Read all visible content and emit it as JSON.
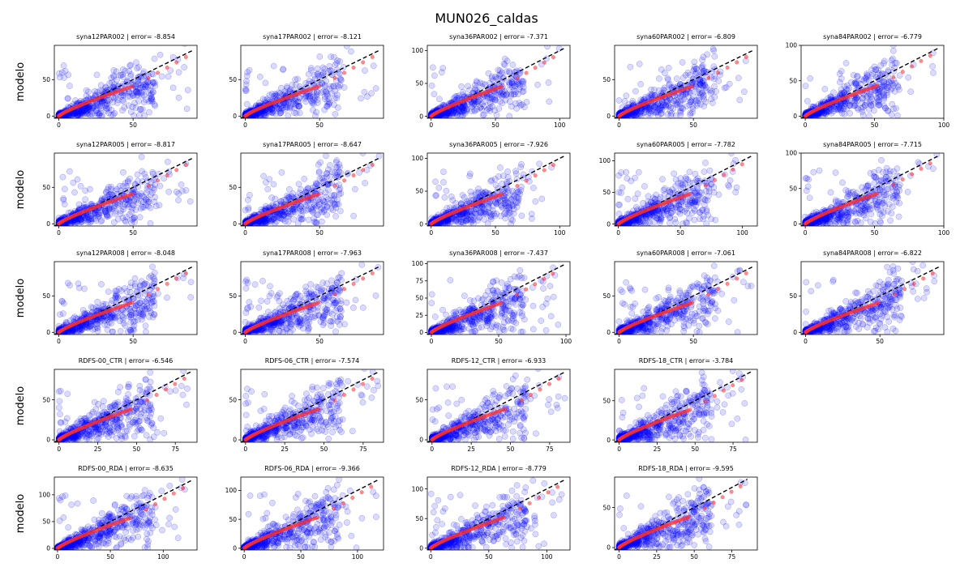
{
  "figure": {
    "title": "MUN026_caldas",
    "ylabel": "modelo"
  },
  "style": {
    "scatter_color": "#0000ff",
    "quantile_color": "#ff3030",
    "reference_line_color": "#000000"
  },
  "chart_data": [
    {
      "type": "scatter",
      "title": "syna12PAR002 | error= -8.854",
      "xlim": [
        -3,
        93
      ],
      "ylim": [
        -3,
        97
      ],
      "xticks": [
        0,
        50
      ],
      "yticks": [
        0,
        50
      ],
      "maxv": 90
    },
    {
      "type": "scatter",
      "title": "syna17PAR002 | error= -8.121",
      "xlim": [
        -3,
        93
      ],
      "ylim": [
        -3,
        97
      ],
      "xticks": [
        0,
        50
      ],
      "yticks": [
        0,
        50
      ],
      "maxv": 90
    },
    {
      "type": "scatter",
      "title": "syna36PAR002 | error= -7.371",
      "xlim": [
        -3,
        108
      ],
      "ylim": [
        -3,
        108
      ],
      "xticks": [
        0,
        50,
        100
      ],
      "yticks": [
        0,
        50,
        100
      ],
      "maxv": 100
    },
    {
      "type": "scatter",
      "title": "syna60PAR002 | error= -6.809",
      "xlim": [
        -3,
        93
      ],
      "ylim": [
        -3,
        97
      ],
      "xticks": [
        0,
        50
      ],
      "yticks": [
        0,
        50
      ],
      "maxv": 90
    },
    {
      "type": "scatter",
      "title": "syna84PAR002 | error= -6.779",
      "xlim": [
        -3,
        100
      ],
      "ylim": [
        -3,
        100
      ],
      "xticks": [
        0,
        50,
        100
      ],
      "yticks": [
        0,
        50,
        100
      ],
      "maxv": 95
    },
    {
      "type": "scatter",
      "title": "syna12PAR005 | error= -8.817",
      "xlim": [
        -3,
        93
      ],
      "ylim": [
        -3,
        97
      ],
      "xticks": [
        0,
        50
      ],
      "yticks": [
        0,
        50
      ],
      "maxv": 90
    },
    {
      "type": "scatter",
      "title": "syna17PAR005 | error= -8.647",
      "xlim": [
        -3,
        93
      ],
      "ylim": [
        -3,
        97
      ],
      "xticks": [
        0,
        50
      ],
      "yticks": [
        0,
        50
      ],
      "maxv": 90
    },
    {
      "type": "scatter",
      "title": "syna36PAR005 | error= -7.926",
      "xlim": [
        -3,
        108
      ],
      "ylim": [
        -3,
        108
      ],
      "xticks": [
        0,
        50,
        100
      ],
      "yticks": [
        0,
        50,
        100
      ],
      "maxv": 100
    },
    {
      "type": "scatter",
      "title": "syna60PAR005 | error= -7.782",
      "xlim": [
        -3,
        112
      ],
      "ylim": [
        -3,
        112
      ],
      "xticks": [
        0,
        50,
        100
      ],
      "yticks": [
        0,
        50,
        100
      ],
      "maxv": 105
    },
    {
      "type": "scatter",
      "title": "syna84PAR005 | error= -7.715",
      "xlim": [
        -3,
        100
      ],
      "ylim": [
        -3,
        100
      ],
      "xticks": [
        0,
        50,
        100
      ],
      "yticks": [
        0,
        50,
        100
      ],
      "maxv": 95
    },
    {
      "type": "scatter",
      "title": "syna12PAR008 | error= -8.048",
      "xlim": [
        -3,
        93
      ],
      "ylim": [
        -3,
        97
      ],
      "xticks": [
        0,
        50
      ],
      "yticks": [
        0,
        50
      ],
      "maxv": 90
    },
    {
      "type": "scatter",
      "title": "syna17PAR008 | error= -7.963",
      "xlim": [
        -3,
        93
      ],
      "ylim": [
        -3,
        97
      ],
      "xticks": [
        0,
        50
      ],
      "yticks": [
        0,
        50
      ],
      "maxv": 90
    },
    {
      "type": "scatter",
      "title": "syna36PAR008 | error= -7.437",
      "xlim": [
        -3,
        103
      ],
      "ylim": [
        -3,
        103
      ],
      "xticks": [
        0,
        50,
        100
      ],
      "yticks": [
        0,
        25,
        50,
        75,
        100
      ],
      "maxv": 95
    },
    {
      "type": "scatter",
      "title": "syna60PAR008 | error= -7.061",
      "xlim": [
        -3,
        93
      ],
      "ylim": [
        -3,
        97
      ],
      "xticks": [
        0,
        50
      ],
      "yticks": [
        0,
        50
      ],
      "maxv": 90
    },
    {
      "type": "scatter",
      "title": "syna84PAR008 | error= -6.822",
      "xlim": [
        -3,
        93
      ],
      "ylim": [
        -3,
        97
      ],
      "xticks": [
        0,
        50
      ],
      "yticks": [
        0,
        50
      ],
      "maxv": 90
    },
    {
      "type": "scatter",
      "title": "RDFS-00_CTR | error= -6.546",
      "xlim": [
        -3,
        89
      ],
      "ylim": [
        -3,
        88
      ],
      "xticks": [
        0,
        25,
        50,
        75
      ],
      "yticks": [
        0,
        50
      ],
      "maxv": 85
    },
    {
      "type": "scatter",
      "title": "RDFS-06_CTR | error= -7.574",
      "xlim": [
        -3,
        88
      ],
      "ylim": [
        -3,
        88
      ],
      "xticks": [
        0,
        25,
        50,
        75
      ],
      "yticks": [
        0,
        50
      ],
      "maxv": 85
    },
    {
      "type": "scatter",
      "title": "RDFS-12_CTR | error= -6.933",
      "xlim": [
        -3,
        88
      ],
      "ylim": [
        -3,
        88
      ],
      "xticks": [
        0,
        25,
        50,
        75
      ],
      "yticks": [
        0,
        50
      ],
      "maxv": 85
    },
    {
      "type": "scatter",
      "title": "RDFS-18_CTR | error= -3.784",
      "xlim": [
        -3,
        91
      ],
      "ylim": [
        -3,
        90
      ],
      "xticks": [
        0,
        25,
        50,
        75
      ],
      "yticks": [
        0,
        50
      ],
      "maxv": 85
    },
    {
      "type": "scatter",
      "title": "RDFS-00_RDA | error= -8.635",
      "xlim": [
        -3,
        132
      ],
      "ylim": [
        -3,
        133
      ],
      "xticks": [
        0,
        50,
        100
      ],
      "yticks": [
        0,
        50,
        100
      ],
      "maxv": 125
    },
    {
      "type": "scatter",
      "title": "RDFS-06_RDA | error= -9.366",
      "xlim": [
        -3,
        123
      ],
      "ylim": [
        -3,
        123
      ],
      "xticks": [
        0,
        50,
        100
      ],
      "yticks": [
        0,
        50,
        100
      ],
      "maxv": 118
    },
    {
      "type": "scatter",
      "title": "RDFS-12_RDA | error= -8.779",
      "xlim": [
        -3,
        120
      ],
      "ylim": [
        -3,
        120
      ],
      "xticks": [
        0,
        50,
        100
      ],
      "yticks": [
        0,
        50,
        100
      ],
      "maxv": 115
    },
    {
      "type": "scatter",
      "title": "RDFS-18_RDA | error= -9.595",
      "xlim": [
        -3,
        92
      ],
      "ylim": [
        -3,
        88
      ],
      "xticks": [
        0,
        25,
        50,
        75
      ],
      "yticks": [
        0,
        50
      ],
      "maxv": 85
    }
  ]
}
